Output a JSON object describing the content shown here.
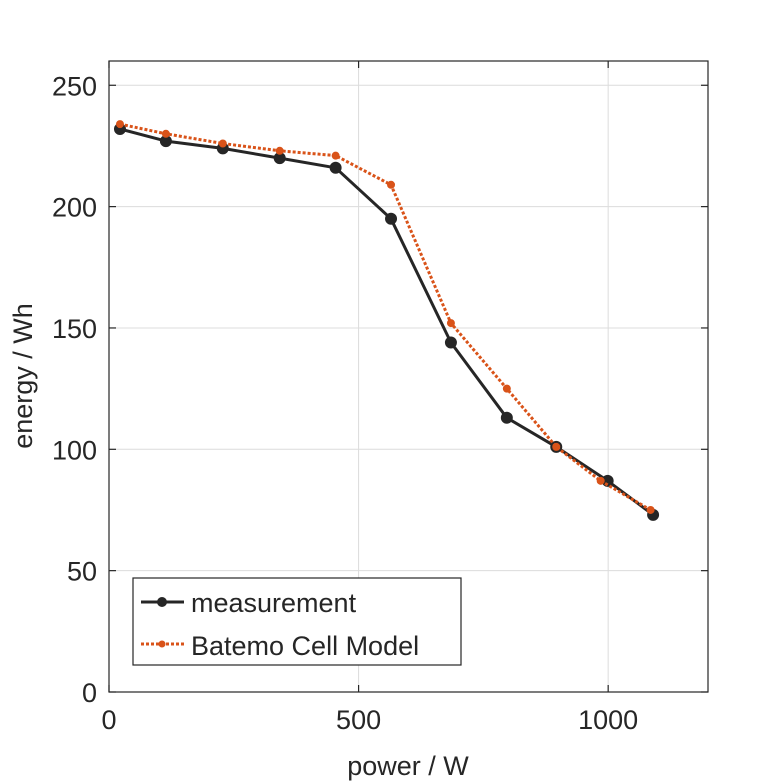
{
  "chart_data": {
    "type": "line",
    "title": "",
    "xlabel": "power / W",
    "ylabel": "energy / Wh",
    "xlim": [
      0,
      1200
    ],
    "ylim": [
      0,
      260
    ],
    "xticks": [
      0,
      500,
      1000
    ],
    "yticks": [
      0,
      50,
      100,
      150,
      200,
      250
    ],
    "grid": true,
    "legend_position": "bottom-left",
    "series": [
      {
        "name": "measurement",
        "color": "#262626",
        "line_style": "solid",
        "marker": "circle",
        "x": [
          22,
          114,
          228,
          342,
          454,
          565,
          685,
          797,
          896,
          999,
          1090
        ],
        "y": [
          232,
          227,
          224,
          220,
          216,
          195,
          144,
          113,
          101,
          87,
          73
        ]
      },
      {
        "name": "Batemo Cell Model",
        "color": "#D95319",
        "line_style": "dotted",
        "marker": "circle",
        "x": [
          22,
          114,
          228,
          342,
          454,
          565,
          685,
          797,
          896,
          985,
          1085
        ],
        "y": [
          234,
          230,
          226,
          223,
          221,
          209,
          152,
          125,
          101,
          87,
          75
        ]
      }
    ]
  }
}
